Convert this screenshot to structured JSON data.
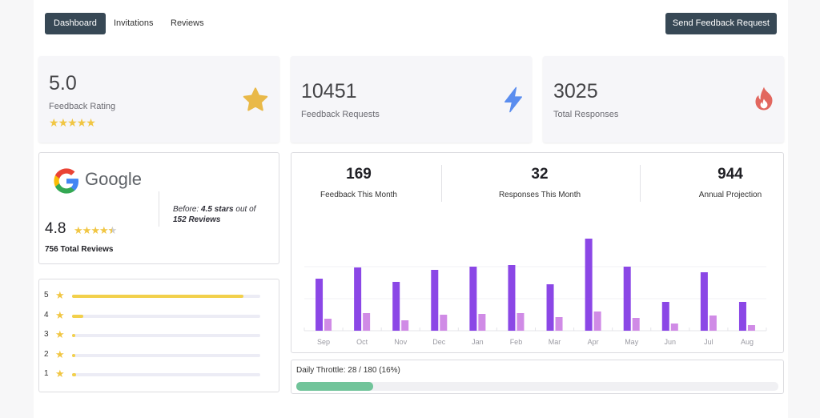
{
  "nav": {
    "tabs": [
      {
        "label": "Dashboard",
        "active": true
      },
      {
        "label": "Invitations",
        "active": false
      },
      {
        "label": "Reviews",
        "active": false
      }
    ],
    "send_button": "Send Feedback Request"
  },
  "stats": [
    {
      "value": "5.0",
      "label": "Feedback Rating",
      "icon": "star-icon",
      "stars": 5,
      "color": "#e9b949"
    },
    {
      "value": "10451",
      "label": "Feedback Requests",
      "icon": "lightning-icon",
      "color": "#5b8def"
    },
    {
      "value": "3025",
      "label": "Total Responses",
      "icon": "fire-icon",
      "color": "#e2675f"
    }
  ],
  "google": {
    "logo_text": "Google",
    "rating": "4.8",
    "stars": 4.5,
    "total_reviews": "756 Total Reviews",
    "before_prefix": "Before:",
    "before_stars": "4.5 stars",
    "before_mid": "out of",
    "before_reviews": "152 Reviews"
  },
  "rating_breakdown": [
    {
      "stars": "5",
      "fraction": 0.91
    },
    {
      "stars": "4",
      "fraction": 0.06
    },
    {
      "stars": "3",
      "fraction": 0.01
    },
    {
      "stars": "2",
      "fraction": 0.01
    },
    {
      "stars": "1",
      "fraction": 0.02
    }
  ],
  "metrics": [
    {
      "value": "169",
      "label": "Feedback This Month"
    },
    {
      "value": "32",
      "label": "Responses This Month"
    },
    {
      "value": "944",
      "label": "Annual Projection"
    }
  ],
  "chart_data": {
    "type": "bar",
    "categories": [
      "Sep",
      "Oct",
      "Nov",
      "Dec",
      "Jan",
      "Feb",
      "Mar",
      "Apr",
      "May",
      "Jun",
      "Jul",
      "Aug"
    ],
    "series": [
      {
        "values": [
          65,
          79,
          61,
          76,
          80,
          82,
          58,
          115,
          80,
          36,
          73,
          36
        ],
        "color": "#8b47e6"
      },
      {
        "values": [
          15,
          22,
          13,
          20,
          21,
          22,
          17,
          24,
          16,
          9,
          19,
          7
        ],
        "color": "#d08be6"
      }
    ],
    "ylim": [
      0,
      120
    ],
    "grid": true,
    "legend": "none"
  },
  "throttle": {
    "label": "Daily Throttle: 28 / 180 (16%)",
    "fraction": 0.16,
    "color": "#71c49a"
  }
}
